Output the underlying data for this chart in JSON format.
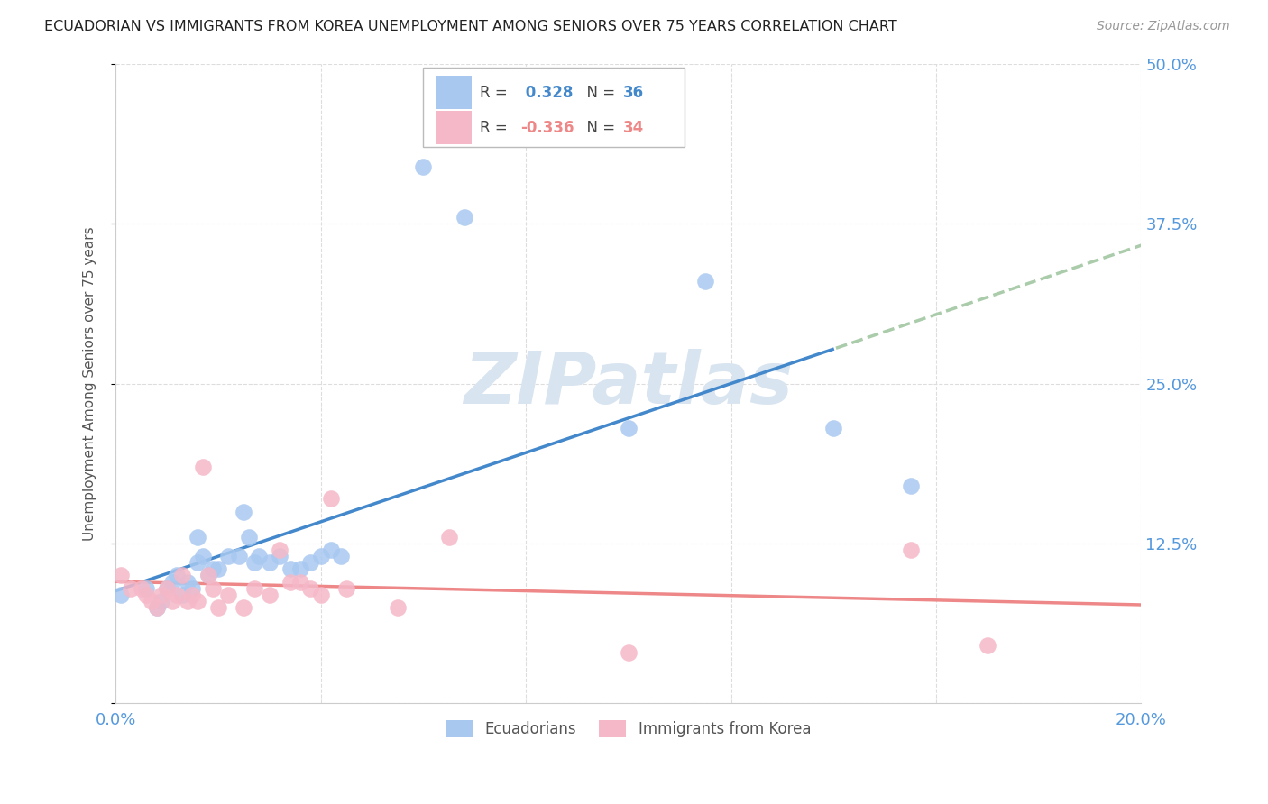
{
  "title": "ECUADORIAN VS IMMIGRANTS FROM KOREA UNEMPLOYMENT AMONG SENIORS OVER 75 YEARS CORRELATION CHART",
  "source": "Source: ZipAtlas.com",
  "ylabel": "Unemployment Among Seniors over 75 years",
  "xlim": [
    0.0,
    0.2
  ],
  "ylim": [
    0.0,
    0.5
  ],
  "xticks": [
    0.0,
    0.04,
    0.08,
    0.12,
    0.16,
    0.2
  ],
  "yticks": [
    0.0,
    0.125,
    0.25,
    0.375,
    0.5
  ],
  "ytick_labels": [
    "",
    "12.5%",
    "25.0%",
    "37.5%",
    "50.0%"
  ],
  "xtick_labels": [
    "0.0%",
    "",
    "",
    "",
    "",
    "20.0%"
  ],
  "blue_R": 0.328,
  "blue_N": 36,
  "pink_R": -0.336,
  "pink_N": 34,
  "blue_color": "#A8C8F0",
  "pink_color": "#F5B8C8",
  "blue_line_color": "#4488CC",
  "pink_line_color": "#EE8888",
  "trend_dashed_color": "#AACCAA",
  "background_color": "#FFFFFF",
  "grid_color": "#DDDDDD",
  "title_color": "#222222",
  "axis_label_color": "#555555",
  "tick_color": "#5599DD",
  "watermark_color": "#D8E4F0",
  "blue_x": [
    0.001,
    0.006,
    0.008,
    0.009,
    0.01,
    0.011,
    0.012,
    0.013,
    0.014,
    0.015,
    0.016,
    0.016,
    0.017,
    0.018,
    0.019,
    0.02,
    0.022,
    0.024,
    0.025,
    0.026,
    0.027,
    0.028,
    0.03,
    0.032,
    0.034,
    0.036,
    0.038,
    0.04,
    0.042,
    0.044,
    0.06,
    0.068,
    0.1,
    0.115,
    0.14,
    0.155
  ],
  "blue_y": [
    0.085,
    0.09,
    0.075,
    0.08,
    0.09,
    0.095,
    0.1,
    0.085,
    0.095,
    0.09,
    0.13,
    0.11,
    0.115,
    0.1,
    0.105,
    0.105,
    0.115,
    0.115,
    0.15,
    0.13,
    0.11,
    0.115,
    0.11,
    0.115,
    0.105,
    0.105,
    0.11,
    0.115,
    0.12,
    0.115,
    0.42,
    0.38,
    0.215,
    0.33,
    0.215,
    0.17
  ],
  "pink_x": [
    0.001,
    0.003,
    0.005,
    0.006,
    0.007,
    0.008,
    0.009,
    0.01,
    0.011,
    0.012,
    0.013,
    0.014,
    0.015,
    0.016,
    0.017,
    0.018,
    0.019,
    0.02,
    0.022,
    0.025,
    0.027,
    0.03,
    0.032,
    0.034,
    0.036,
    0.038,
    0.04,
    0.042,
    0.045,
    0.055,
    0.065,
    0.1,
    0.155,
    0.17
  ],
  "pink_y": [
    0.1,
    0.09,
    0.09,
    0.085,
    0.08,
    0.075,
    0.085,
    0.09,
    0.08,
    0.085,
    0.1,
    0.08,
    0.085,
    0.08,
    0.185,
    0.1,
    0.09,
    0.075,
    0.085,
    0.075,
    0.09,
    0.085,
    0.12,
    0.095,
    0.095,
    0.09,
    0.085,
    0.16,
    0.09,
    0.075,
    0.13,
    0.04,
    0.12,
    0.045
  ],
  "trend_split_x": 0.14
}
